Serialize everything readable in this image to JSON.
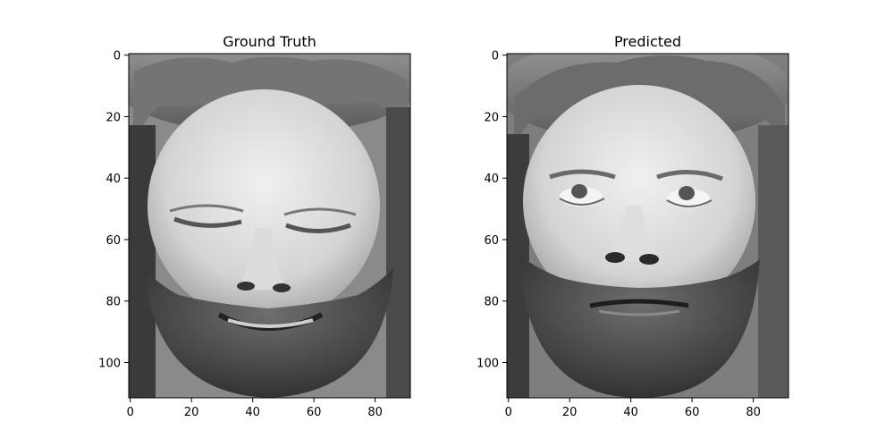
{
  "chart_data": [
    {
      "type": "heatmap",
      "title": "Ground Truth",
      "subject": "grayscale face image: bearded man, eyes closed, smiling",
      "xlabel": "",
      "ylabel": "",
      "xlim": [
        -0.5,
        91.5
      ],
      "ylim": [
        111.5,
        -0.5
      ],
      "x_ticks": [
        0,
        20,
        40,
        60,
        80
      ],
      "y_ticks": [
        0,
        20,
        40,
        60,
        80,
        100
      ],
      "grid": false,
      "colormap": "gray"
    },
    {
      "type": "heatmap",
      "title": "Predicted",
      "subject": "grayscale face image: bearded man, eyes open looking upward",
      "xlabel": "",
      "ylabel": "",
      "xlim": [
        -0.5,
        91.5
      ],
      "ylim": [
        111.5,
        -0.5
      ],
      "x_ticks": [
        0,
        20,
        40,
        60,
        80
      ],
      "y_ticks": [
        0,
        20,
        40,
        60,
        80,
        100
      ],
      "grid": false,
      "colormap": "gray"
    }
  ]
}
